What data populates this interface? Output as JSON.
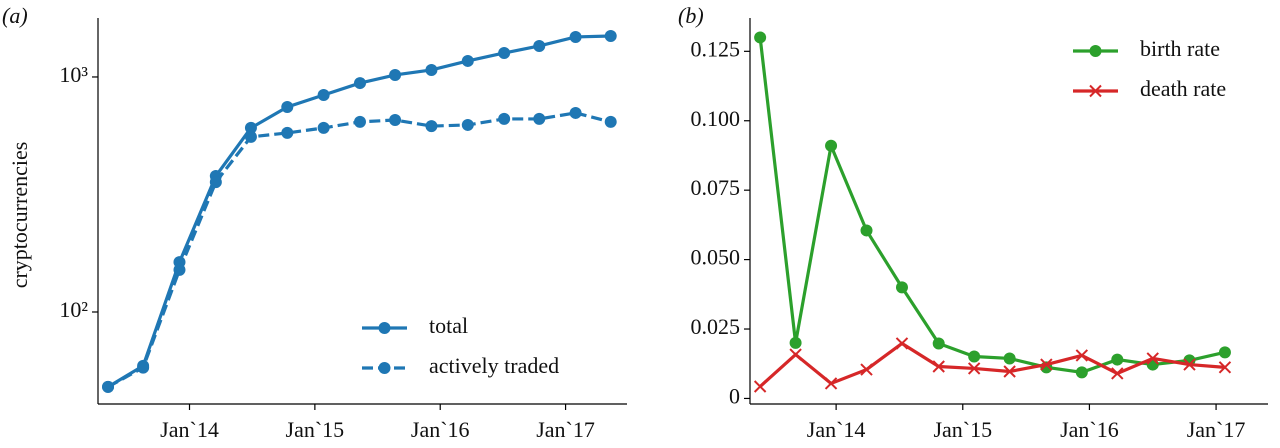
{
  "chart_data": [
    {
      "type": "line",
      "title": "(a)",
      "ylabel": "cryptocurrencies",
      "log_y": true,
      "x": [
        2013.35,
        2013.63,
        2013.92,
        2014.21,
        2014.49,
        2014.78,
        2015.07,
        2015.36,
        2015.64,
        2015.93,
        2016.22,
        2016.51,
        2016.79,
        2017.08,
        2017.36
      ],
      "series": [
        {
          "name": "total",
          "color": "#1f77b4",
          "linestyle": "solid",
          "marker": "o",
          "values": [
            48,
            59,
            163,
            379,
            607,
            745,
            838,
            942,
            1020,
            1071,
            1170,
            1265,
            1355,
            1480,
            1494
          ]
        },
        {
          "name": "actively traded",
          "color": "#1f77b4",
          "linestyle": "dashed",
          "marker": "o",
          "values": [
            48,
            58,
            151,
            357,
            556,
            578,
            607,
            644,
            656,
            618,
            625,
            663,
            663,
            703,
            644
          ]
        }
      ],
      "xlim": [
        2013.27,
        2017.49
      ],
      "xticks": [
        {
          "value": 2014,
          "label": "Jan`14"
        },
        {
          "value": 2015,
          "label": "Jan`15"
        },
        {
          "value": 2016,
          "label": "Jan`16"
        },
        {
          "value": 2017,
          "label": "Jan`17"
        }
      ],
      "ylim": [
        40.6,
        1782
      ],
      "yticks": [
        {
          "value": 100,
          "label": "10²"
        },
        {
          "value": 1000,
          "label": "10³"
        }
      ],
      "legend": "lower right"
    },
    {
      "type": "line",
      "title": "(b)",
      "log_y": false,
      "x": [
        2013.4,
        2013.68,
        2013.96,
        2014.24,
        2014.52,
        2014.81,
        2015.09,
        2015.37,
        2015.66,
        2015.94,
        2016.22,
        2016.5,
        2016.79,
        2017.07
      ],
      "series": [
        {
          "name": "birth rate",
          "color": "#2ca02c",
          "linestyle": "solid",
          "marker": "o",
          "values": [
            0.13,
            0.02,
            0.091,
            0.0605,
            0.04,
            0.0198,
            0.0151,
            0.0144,
            0.0112,
            0.0094,
            0.014,
            0.0122,
            0.0137,
            0.0166
          ]
        },
        {
          "name": "death rate",
          "color": "#d62728",
          "linestyle": "solid",
          "marker": "x",
          "values": [
            0.0043,
            0.0158,
            0.0054,
            0.0104,
            0.0198,
            0.0115,
            0.0108,
            0.0097,
            0.0122,
            0.0155,
            0.009,
            0.0144,
            0.0122,
            0.0112
          ]
        }
      ],
      "xlim": [
        2013.32,
        2017.41
      ],
      "xticks": [
        {
          "value": 2014,
          "label": "Jan`14"
        },
        {
          "value": 2015,
          "label": "Jan`15"
        },
        {
          "value": 2016,
          "label": "Jan`16"
        },
        {
          "value": 2017,
          "label": "Jan`17"
        }
      ],
      "ylim": [
        -0.002,
        0.137
      ],
      "yticks": [
        0,
        0.025,
        {
          "value": 0.05,
          "label": "0.050"
        },
        0.075,
        {
          "value": 0.1,
          "label": "0.100"
        },
        0.125
      ],
      "legend": "upper right"
    }
  ]
}
